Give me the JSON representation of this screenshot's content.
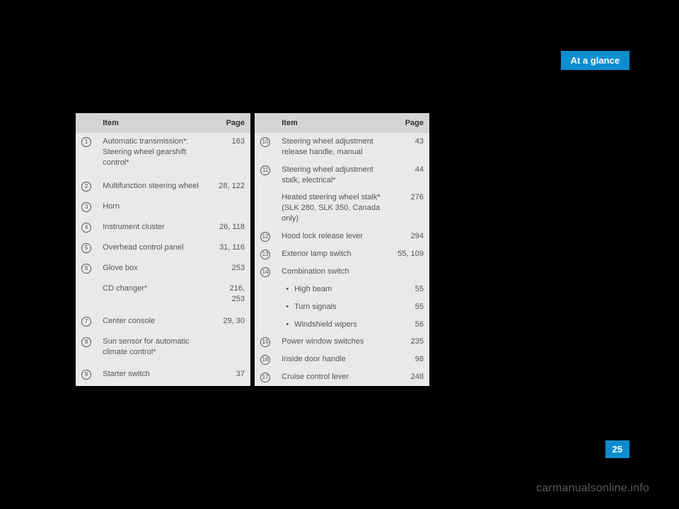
{
  "header": {
    "title": "At a glance"
  },
  "page_number": "25",
  "watermark": "carmanualsonline.info",
  "column_headers": {
    "num": "",
    "item": "Item",
    "page": "Page"
  },
  "table_left": {
    "rows": [
      {
        "num": "1",
        "item": "Automatic transmission*: Steering wheel gearshift control*",
        "page": "163"
      },
      {
        "num": "2",
        "item": "Multifunction steering wheel",
        "page": "28, 122"
      },
      {
        "num": "3",
        "item": "Horn",
        "page": ""
      },
      {
        "num": "4",
        "item": "Instrument cluster",
        "page": "26, 118"
      },
      {
        "num": "5",
        "item": "Overhead control panel",
        "page": "31, 116"
      },
      {
        "num": "6",
        "item": "Glove box",
        "page": "253"
      },
      {
        "num": "",
        "item": "CD changer*",
        "page": "216, 253"
      },
      {
        "num": "7",
        "item": "Center console",
        "page": "29, 30"
      },
      {
        "num": "8",
        "item": "Sun sensor for automatic climate control*",
        "page": ""
      },
      {
        "num": "9",
        "item": "Starter switch",
        "page": "37"
      }
    ]
  },
  "table_right": {
    "rows": [
      {
        "num": "10",
        "item": "Steering wheel adjustment release handle, manual",
        "page": "43"
      },
      {
        "num": "11",
        "item": "Steering wheel adjustment stalk, electrical*",
        "page": "44"
      },
      {
        "num": "",
        "item": "Heated steering wheel stalk* (SLK 280, SLK 350, Canada only)",
        "page": "276"
      },
      {
        "num": "12",
        "item": "Hood lock release lever",
        "page": "294"
      },
      {
        "num": "13",
        "item": "Exterior lamp switch",
        "page": "55, 109"
      },
      {
        "num": "14",
        "item": "Combination switch",
        "page": ""
      },
      {
        "num": "",
        "item": "High beam",
        "page": "55",
        "bullet": true
      },
      {
        "num": "",
        "item": "Turn signals",
        "page": "55",
        "bullet": true
      },
      {
        "num": "",
        "item": "Windshield wipers",
        "page": "56",
        "bullet": true
      },
      {
        "num": "15",
        "item": "Power window switches",
        "page": "235"
      },
      {
        "num": "16",
        "item": "Inside door handle",
        "page": "98"
      },
      {
        "num": "17",
        "item": "Cruise control lever",
        "page": "248"
      }
    ]
  }
}
